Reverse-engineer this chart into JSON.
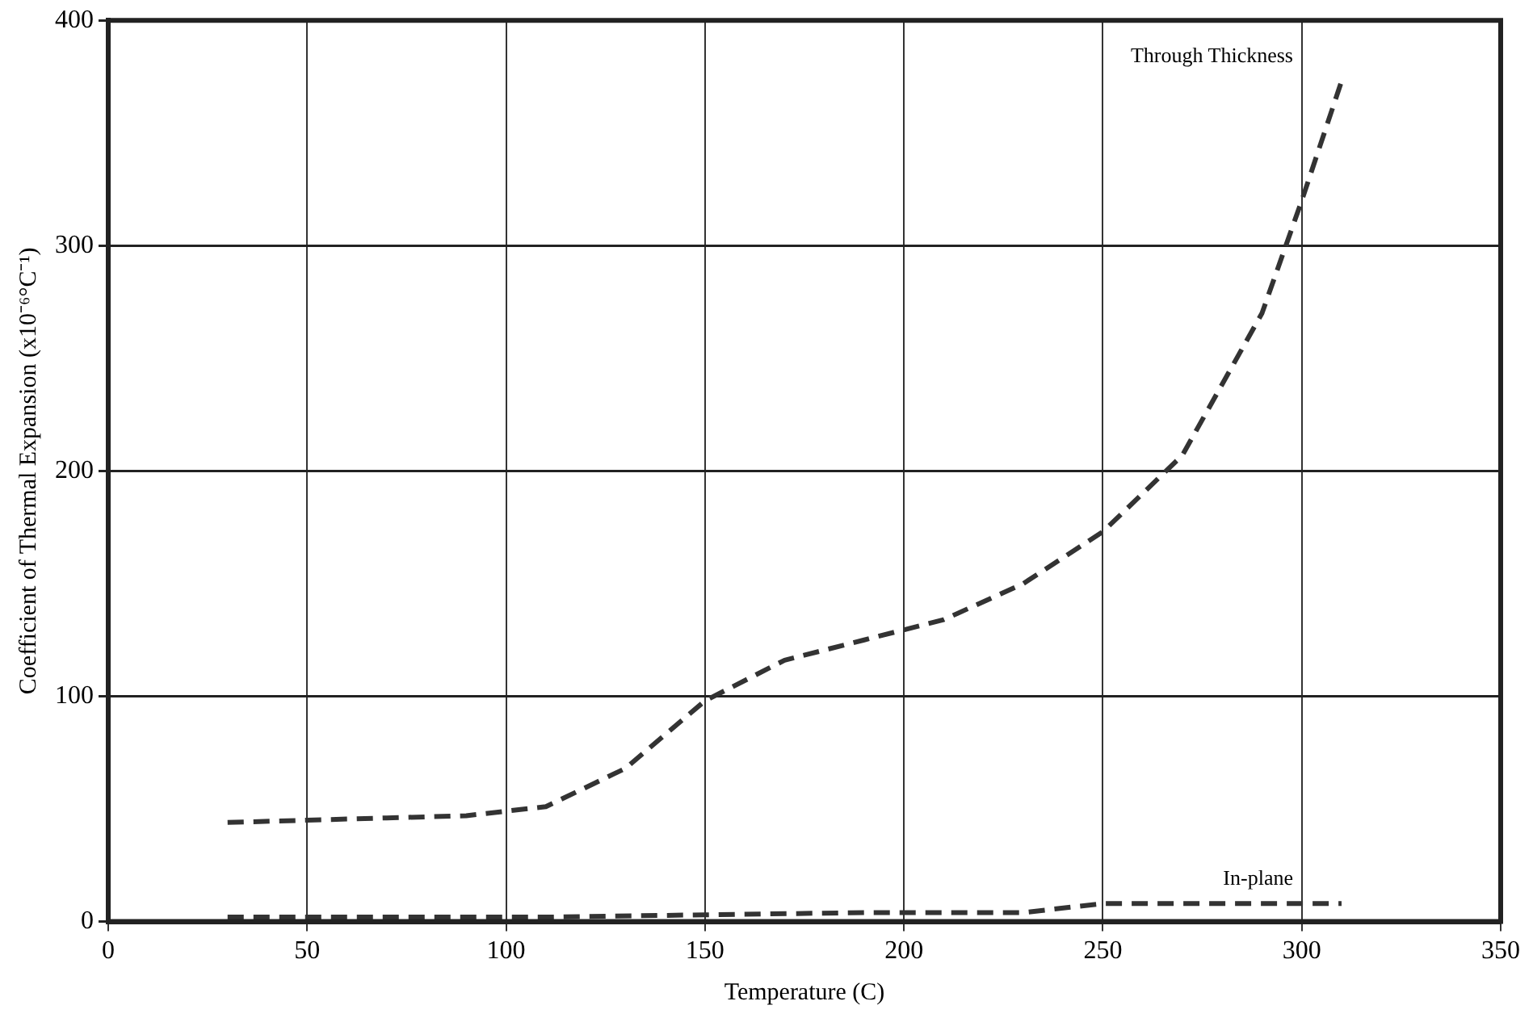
{
  "chart_data": {
    "type": "line",
    "xlabel": "Temperature (C)",
    "ylabel": "Coefficient of Thermal Expansion (x10⁻⁶°C⁻¹)",
    "xlim": [
      0,
      350
    ],
    "xticks": [
      0,
      50,
      100,
      150,
      200,
      250,
      300,
      350
    ],
    "ylim": [
      0,
      400
    ],
    "yticks": [
      0,
      100,
      200,
      300,
      400
    ],
    "grid": true,
    "legend": false,
    "marker": "none",
    "line_style": "dashed",
    "series": [
      {
        "name": "Through Thickness",
        "color": "#333333",
        "x": [
          30,
          50,
          70,
          90,
          110,
          130,
          150,
          170,
          190,
          210,
          230,
          250,
          270,
          290,
          300,
          310
        ],
        "values": [
          44,
          45,
          46,
          47,
          51,
          68,
          98,
          116,
          125,
          134,
          150,
          173,
          207,
          270,
          320,
          373
        ]
      },
      {
        "name": "In-plane",
        "color": "#333333",
        "x": [
          30,
          110,
          150,
          190,
          230,
          250,
          310
        ],
        "values": [
          2,
          2,
          3,
          4,
          4,
          8,
          8
        ]
      }
    ]
  }
}
